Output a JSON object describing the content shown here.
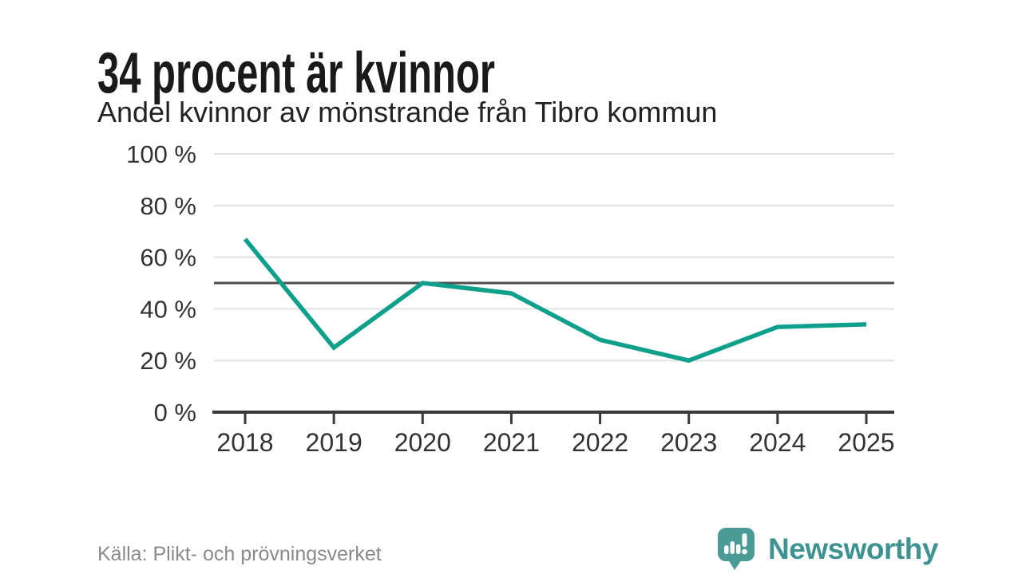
{
  "chart_data": {
    "type": "line",
    "title": "34 procent är kvinnor",
    "subtitle": "Andel kvinnor av mönstrande från Tibro kommun",
    "source": "Källa: Plikt- och prövningsverket",
    "x": [
      2018,
      2019,
      2020,
      2021,
      2022,
      2023,
      2024,
      2025
    ],
    "values": [
      67,
      25,
      50,
      46,
      28,
      20,
      33,
      34
    ],
    "xlabel": "",
    "ylabel": "",
    "ylim": [
      0,
      100
    ],
    "yticks": [
      0,
      20,
      40,
      60,
      80,
      100
    ],
    "ytick_suffix": " %",
    "reference_line": 50,
    "grid": true,
    "legend": "none"
  },
  "branding": {
    "name": "Newsworthy",
    "logo_icon": "speech-bubble-bar-chart-exclamation"
  },
  "colors": {
    "background": "#ffffff",
    "line": "#0fa08c",
    "reference_line": "#4d4d4d",
    "axis": "#3a3a3a",
    "grid": "#e3e3e3",
    "title_text": "#1a1a1a",
    "subtitle_text": "#222222",
    "tick_text": "#333333",
    "source_text": "#8a8a8a",
    "brand_teal": "#3e9290",
    "logo_fill": "#4a9b97",
    "logo_glyph": "#ffffff"
  }
}
